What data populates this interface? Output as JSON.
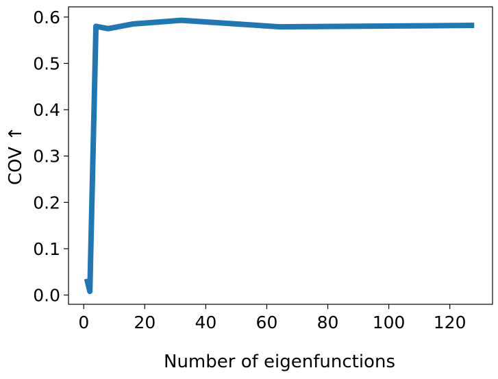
{
  "chart_data": {
    "type": "line",
    "title": "",
    "xlabel": "Number of eigenfunctions",
    "ylabel": "COV ↑",
    "xlim": [
      -5,
      134
    ],
    "ylim": [
      -0.02,
      0.622
    ],
    "xticks": [
      0,
      20,
      40,
      60,
      80,
      100,
      120
    ],
    "yticks": [
      0.0,
      0.1,
      0.2,
      0.3,
      0.4,
      0.5,
      0.6
    ],
    "xtick_labels": [
      "0",
      "20",
      "40",
      "60",
      "80",
      "100",
      "120"
    ],
    "ytick_labels": [
      "0.0",
      "0.1",
      "0.2",
      "0.3",
      "0.4",
      "0.5",
      "0.6"
    ],
    "grid": false,
    "series": [
      {
        "color": "#1f77b4",
        "x": [
          1,
          2,
          4,
          8,
          16,
          32,
          64,
          128
        ],
        "y": [
          0.035,
          0.008,
          0.58,
          0.575,
          0.585,
          0.593,
          0.579,
          0.582
        ]
      }
    ]
  }
}
